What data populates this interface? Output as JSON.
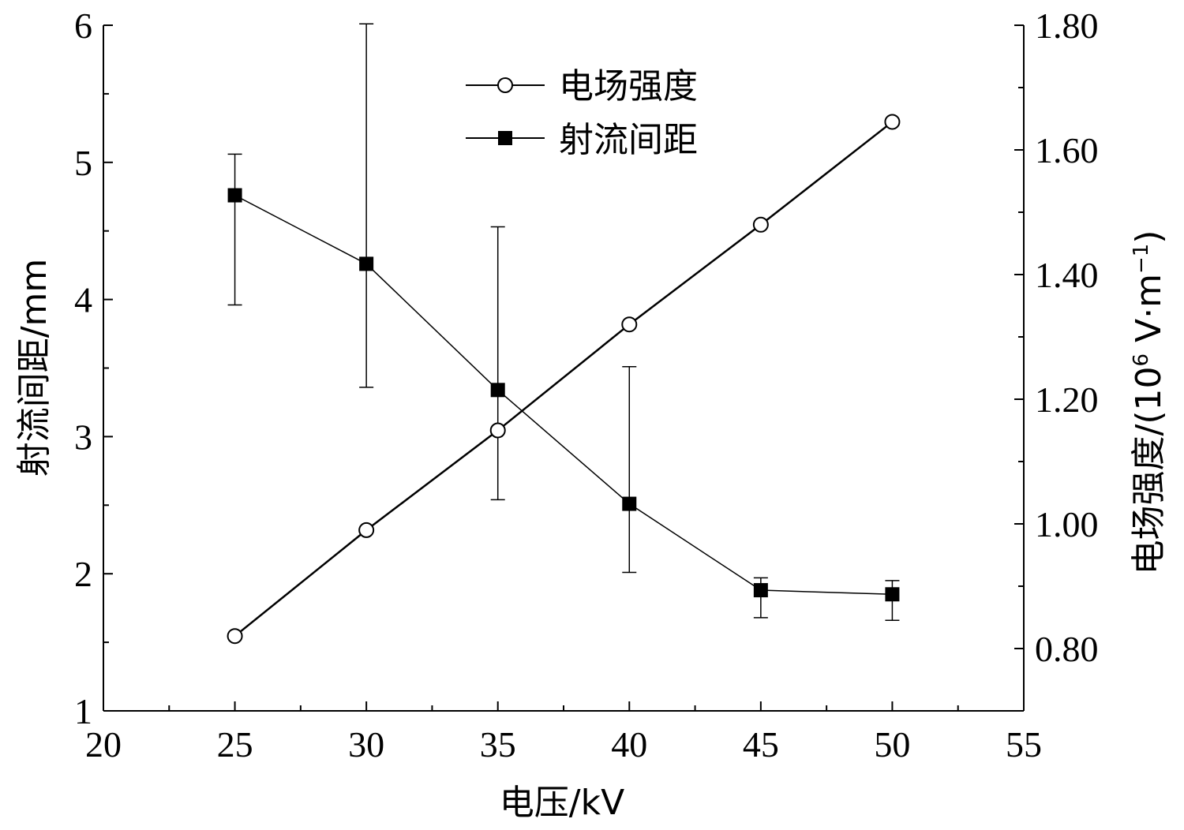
{
  "chart_data": {
    "type": "line",
    "xlabel": "电压/kV",
    "ylabel_left": "射流间距/mm",
    "ylabel_right_main": "电场强度/(10",
    "ylabel_right_exp": "6",
    "ylabel_right_tail": " V·m",
    "ylabel_right_exp2": "−1",
    "ylabel_right_close": ")",
    "x_ticks": [
      20,
      25,
      30,
      35,
      40,
      45,
      50,
      55
    ],
    "x_tick_labels": [
      "20",
      "25",
      "30",
      "35",
      "40",
      "45",
      "50",
      "55"
    ],
    "y_left_ticks": [
      1,
      2,
      3,
      4,
      5,
      6
    ],
    "y_left_tick_labels": [
      "1",
      "2",
      "3",
      "4",
      "5",
      "6"
    ],
    "y_right_ticks": [
      0.8,
      1.0,
      1.2,
      1.4,
      1.6,
      1.8
    ],
    "y_right_tick_labels": [
      "0.80",
      "1.00",
      "1.20",
      "1.40",
      "1.60",
      "1.80"
    ],
    "xlim": [
      20,
      55
    ],
    "ylim_left": [
      1,
      6
    ],
    "ylim_right": [
      0.7,
      1.8
    ],
    "grid": false,
    "legend_position": "top-center",
    "series": [
      {
        "name": "电场强度",
        "axis": "right",
        "marker": "open-circle",
        "x": [
          25,
          30,
          35,
          40,
          45,
          50
        ],
        "y": [
          0.82,
          0.99,
          1.15,
          1.32,
          1.48,
          1.645
        ]
      },
      {
        "name": "射流间距",
        "axis": "left",
        "marker": "filled-square",
        "x": [
          25,
          30,
          35,
          40,
          45,
          50
        ],
        "y": [
          4.76,
          4.26,
          3.34,
          2.51,
          1.88,
          1.85
        ],
        "error_low": [
          3.96,
          3.36,
          2.54,
          2.01,
          1.68,
          1.66
        ],
        "error_high": [
          5.06,
          6.01,
          4.53,
          3.51,
          1.97,
          1.95
        ]
      }
    ]
  }
}
